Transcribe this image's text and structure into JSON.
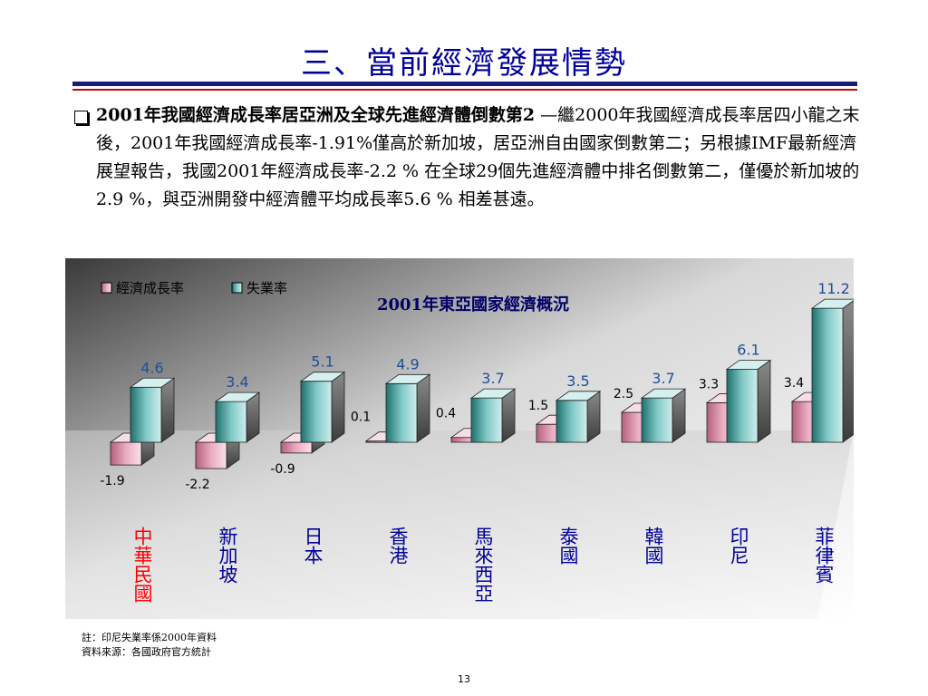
{
  "slide": {
    "title": "三、當前經濟發展情勢",
    "bullet_lead": "2001年我國經濟成長率居亞洲及全球先進經濟體倒數第2",
    "bullet_body": " —繼2000年我國經濟成長率居四小龍之末後，2001年我國經濟成長率-1.91%僅高於新加坡，居亞洲自由國家倒數第二；另根據IMF最新經濟展望報告，我國2001年經濟成長率-2.2 % 在全球29個先進經濟體中排名倒數第二，僅優於新加坡的2.9 %，與亞洲開發中經濟體平均成長率5.6 % 相差甚遠。",
    "note_1": "註：印尼失業率係2000年資料",
    "note_2": "資料來源：各國政府官方統計",
    "page_number": "13"
  },
  "colors": {
    "title": "#000099",
    "growth_bar": "#e8a8bc",
    "unemployment_bar": "#5fb0ae",
    "highlight_label": "#ff0000",
    "category_label": "#000099",
    "value_label": "#1f4e99"
  },
  "chart_data": {
    "type": "bar",
    "title": "2001年東亞國家經濟概況",
    "categories": [
      "中華民國",
      "新加坡",
      "日本",
      "香港",
      "馬來西亞",
      "泰國",
      "韓國",
      "印尼",
      "菲律賓"
    ],
    "highlight_category": "中華民國",
    "series": [
      {
        "name": "經濟成長率",
        "values": [
          -1.9,
          -2.2,
          -0.9,
          0.1,
          0.4,
          1.5,
          2.5,
          3.3,
          3.4
        ]
      },
      {
        "name": "失業率",
        "values": [
          4.6,
          3.4,
          5.1,
          4.9,
          3.7,
          3.5,
          3.7,
          6.1,
          11.2
        ]
      }
    ],
    "value_labels": {
      "growth": [
        "-1.9",
        "-2.2",
        "-0.9",
        "0.1",
        "0.4",
        "1.5",
        "2.5",
        "3.3",
        "3.4"
      ],
      "unemployment": [
        "4.6",
        "3.4",
        "5.1",
        "4.9",
        "3.7",
        "3.5",
        "3.7",
        "6.1",
        "11.2"
      ]
    },
    "ylim": [
      -3,
      12
    ],
    "legend_position": "top-left",
    "grid": false,
    "three_d": true
  }
}
